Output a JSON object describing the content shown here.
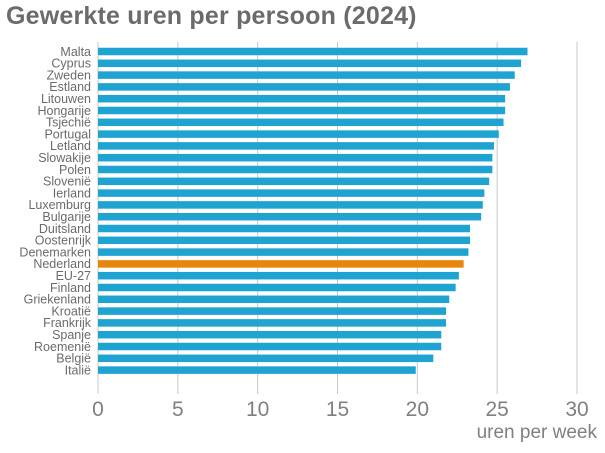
{
  "chart_data": {
    "type": "bar",
    "orientation": "horizontal",
    "title": "Gewerkte uren per persoon (2024)",
    "xlabel": "uren per week",
    "ylabel": "",
    "xlim": [
      0,
      30
    ],
    "xticks": [
      0,
      5,
      10,
      15,
      20,
      25,
      30
    ],
    "grid": true,
    "colors": {
      "default": "#1fa3d1",
      "highlight": "#e8850b",
      "grid": "#c8c8c8"
    },
    "highlight_category": "Nederland",
    "categories": [
      "Malta",
      "Cyprus",
      "Zweden",
      "Estland",
      "Litouwen",
      "Hongarije",
      "Tsjechië",
      "Portugal",
      "Letland",
      "Slowakije",
      "Polen",
      "Slovenië",
      "Ierland",
      "Luxemburg",
      "Bulgarije",
      "Duitsland",
      "Oostenrijk",
      "Denemarken",
      "Nederland",
      "EU-27",
      "Finland",
      "Griekenland",
      "Kroatië",
      "Frankrijk",
      "Spanje",
      "Roemenië",
      "België",
      "Italië"
    ],
    "values": [
      26.9,
      26.5,
      26.1,
      25.8,
      25.5,
      25.5,
      25.4,
      25.1,
      24.8,
      24.7,
      24.7,
      24.5,
      24.2,
      24.1,
      24.0,
      23.3,
      23.3,
      23.2,
      22.9,
      22.6,
      22.4,
      22.0,
      21.8,
      21.8,
      21.5,
      21.5,
      21.0,
      19.9
    ]
  }
}
